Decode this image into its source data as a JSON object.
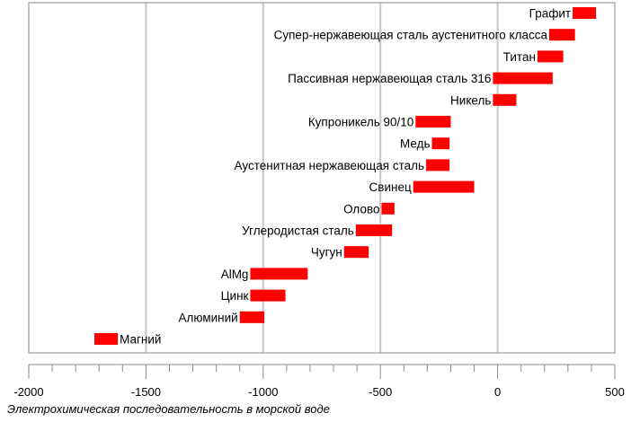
{
  "chart_data": {
    "type": "bar",
    "orientation": "horizontal-range",
    "title": "",
    "xlabel": "Электрохимическая последовательность  в морской воде",
    "ylabel": "",
    "xlim": [
      -2000,
      500
    ],
    "x_ticks": [
      -2000,
      -1500,
      -1000,
      -500,
      0,
      500
    ],
    "x_tick_labels": [
      "-2000",
      "-1500",
      "-1000",
      "-500",
      "0",
      "500"
    ],
    "vertical_gridlines_at": [
      -1500,
      -1000,
      -500,
      0
    ],
    "bar_color": "#ff0000",
    "items": [
      {
        "label": "Графит",
        "min": 320,
        "max": 420,
        "label_side": "left"
      },
      {
        "label": "Супер-нержавеющая сталь аустенитного класса",
        "min": 220,
        "max": 330,
        "label_side": "left"
      },
      {
        "label": "Титан",
        "min": 170,
        "max": 280,
        "label_side": "left"
      },
      {
        "label": "Пассивная нержавеющая сталь 316",
        "min": -20,
        "max": 235,
        "label_side": "left"
      },
      {
        "label": "Никель",
        "min": -20,
        "max": 80,
        "label_side": "left"
      },
      {
        "label": "Купроникель 90/10",
        "min": -350,
        "max": -200,
        "label_side": "left"
      },
      {
        "label": "Медь",
        "min": -280,
        "max": -205,
        "label_side": "left"
      },
      {
        "label": "Аустенитная нержавеющая сталь",
        "min": -305,
        "max": -205,
        "label_side": "left"
      },
      {
        "label": "Свинец",
        "min": -360,
        "max": -100,
        "label_side": "left"
      },
      {
        "label": "Олово",
        "min": -495,
        "max": -440,
        "label_side": "left"
      },
      {
        "label": "Углеродистая сталь",
        "min": -605,
        "max": -450,
        "label_side": "left"
      },
      {
        "label": "Чугун",
        "min": -655,
        "max": -550,
        "label_side": "left"
      },
      {
        "label": "AlMg",
        "min": -1055,
        "max": -810,
        "label_side": "left"
      },
      {
        "label": "Цинк",
        "min": -1055,
        "max": -905,
        "label_side": "left"
      },
      {
        "label": "Алюминий",
        "min": -1100,
        "max": -995,
        "label_side": "left"
      },
      {
        "label": "Магний",
        "min": -1720,
        "max": -1620,
        "label_side": "right"
      }
    ]
  }
}
